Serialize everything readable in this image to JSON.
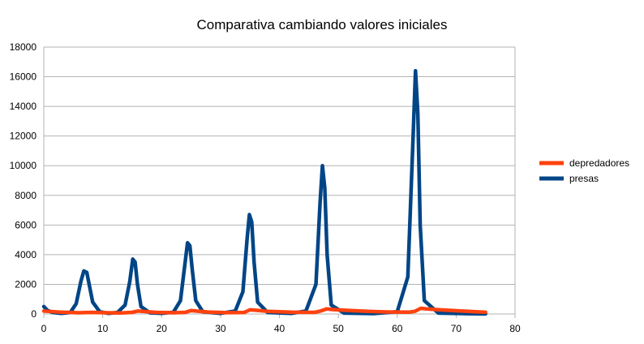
{
  "chart_data": {
    "type": "line",
    "title": "Comparativa cambiando valores iniciales",
    "xlabel": "",
    "ylabel": "",
    "xlim": [
      0,
      80
    ],
    "ylim": [
      0,
      18000
    ],
    "x_ticks": [
      "0",
      "10",
      "20",
      "30",
      "40",
      "50",
      "60",
      "70",
      "80"
    ],
    "y_ticks": [
      "0",
      "2000",
      "4000",
      "6000",
      "8000",
      "10000",
      "12000",
      "14000",
      "16000",
      "18000"
    ],
    "grid": "horizontal",
    "legend_position": "right",
    "series": [
      {
        "name": "depredadores",
        "color": "#ff420e",
        "points": [
          [
            0,
            200
          ],
          [
            3,
            120
          ],
          [
            6,
            80
          ],
          [
            8,
            110
          ],
          [
            10,
            90
          ],
          [
            13,
            70
          ],
          [
            15,
            110
          ],
          [
            16,
            200
          ],
          [
            17,
            170
          ],
          [
            19,
            110
          ],
          [
            22,
            80
          ],
          [
            24,
            110
          ],
          [
            25,
            230
          ],
          [
            26,
            190
          ],
          [
            28,
            130
          ],
          [
            31,
            90
          ],
          [
            34,
            100
          ],
          [
            35,
            280
          ],
          [
            36,
            250
          ],
          [
            38,
            180
          ],
          [
            42,
            120
          ],
          [
            46,
            110
          ],
          [
            47,
            200
          ],
          [
            48,
            340
          ],
          [
            49,
            300
          ],
          [
            51,
            250
          ],
          [
            55,
            180
          ],
          [
            58,
            140
          ],
          [
            62,
            120
          ],
          [
            63,
            180
          ],
          [
            64,
            380
          ],
          [
            65,
            340
          ],
          [
            67,
            290
          ],
          [
            70,
            220
          ],
          [
            73,
            160
          ],
          [
            75,
            120
          ]
        ]
      },
      {
        "name": "presas",
        "color": "#004586",
        "points": [
          [
            0,
            500
          ],
          [
            0.6,
            250
          ],
          [
            1.5,
            100
          ],
          [
            3,
            40
          ],
          [
            4.5,
            100
          ],
          [
            5.5,
            700
          ],
          [
            6.3,
            2200
          ],
          [
            6.8,
            2900
          ],
          [
            7.3,
            2800
          ],
          [
            7.7,
            2000
          ],
          [
            8.3,
            800
          ],
          [
            9.5,
            150
          ],
          [
            11,
            40
          ],
          [
            12.5,
            100
          ],
          [
            13.8,
            600
          ],
          [
            14.6,
            2200
          ],
          [
            15.1,
            3700
          ],
          [
            15.5,
            3500
          ],
          [
            15.9,
            2000
          ],
          [
            16.5,
            500
          ],
          [
            18,
            80
          ],
          [
            20,
            40
          ],
          [
            22,
            120
          ],
          [
            23.2,
            900
          ],
          [
            24,
            3500
          ],
          [
            24.4,
            4800
          ],
          [
            24.8,
            4600
          ],
          [
            25.2,
            3000
          ],
          [
            25.8,
            900
          ],
          [
            27,
            150
          ],
          [
            30,
            40
          ],
          [
            32.5,
            200
          ],
          [
            33.8,
            1500
          ],
          [
            34.5,
            5000
          ],
          [
            34.9,
            6700
          ],
          [
            35.3,
            6200
          ],
          [
            35.7,
            3500
          ],
          [
            36.3,
            800
          ],
          [
            38,
            100
          ],
          [
            42,
            40
          ],
          [
            44.5,
            200
          ],
          [
            46.2,
            2000
          ],
          [
            46.9,
            7500
          ],
          [
            47.3,
            10000
          ],
          [
            47.7,
            8500
          ],
          [
            48.1,
            4000
          ],
          [
            48.8,
            600
          ],
          [
            51,
            60
          ],
          [
            56,
            30
          ],
          [
            60,
            150
          ],
          [
            61.8,
            2500
          ],
          [
            62.7,
            12000
          ],
          [
            63.1,
            16400
          ],
          [
            63.5,
            13500
          ],
          [
            63.9,
            6000
          ],
          [
            64.6,
            900
          ],
          [
            67,
            60
          ],
          [
            72,
            20
          ],
          [
            75,
            10
          ]
        ]
      }
    ]
  }
}
